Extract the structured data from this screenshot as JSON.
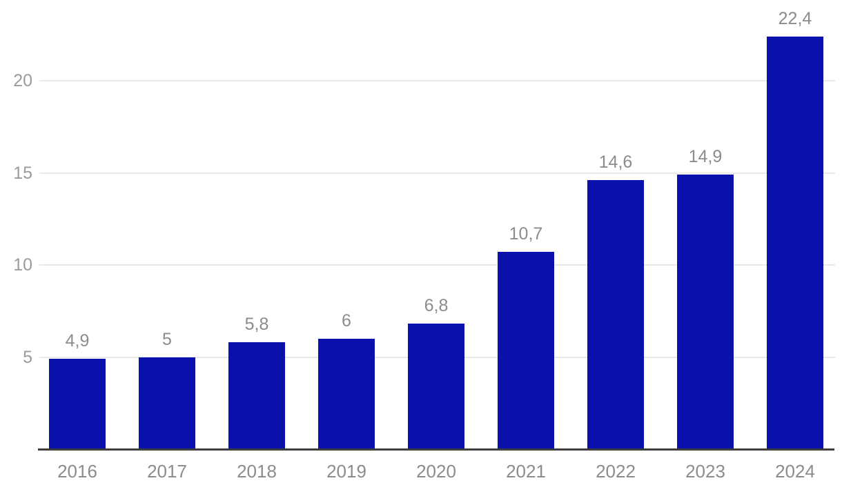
{
  "chart_data": {
    "type": "bar",
    "title": "",
    "xlabel": "",
    "ylabel": "",
    "categories": [
      "2016",
      "2017",
      "2018",
      "2019",
      "2020",
      "2021",
      "2022",
      "2023",
      "2024"
    ],
    "values": [
      4.9,
      5,
      5.8,
      6,
      6.8,
      10.7,
      14.6,
      14.9,
      22.4
    ],
    "value_labels": [
      "4,9",
      "5",
      "5,8",
      "6",
      "6,8",
      "10,7",
      "14,6",
      "14,9",
      "22,4"
    ],
    "decimal_separator": ",",
    "y_ticks": [
      {
        "label": "5",
        "value": 5
      },
      {
        "label": "10",
        "value": 10
      },
      {
        "label": "15",
        "value": 15
      },
      {
        "label": "20",
        "value": 20
      }
    ],
    "ylim": [
      0,
      24.4
    ],
    "grid": "horizontal",
    "legend": "none",
    "colors": {
      "bar": "#0b12ab",
      "value_label": "#8c8c8c",
      "x_label": "#8c8c8c",
      "y_tick_label": "#9b9b9b",
      "gridline": "#e9e9e9",
      "axis_line": "#3d3d3d",
      "background": "#ffffff"
    }
  }
}
